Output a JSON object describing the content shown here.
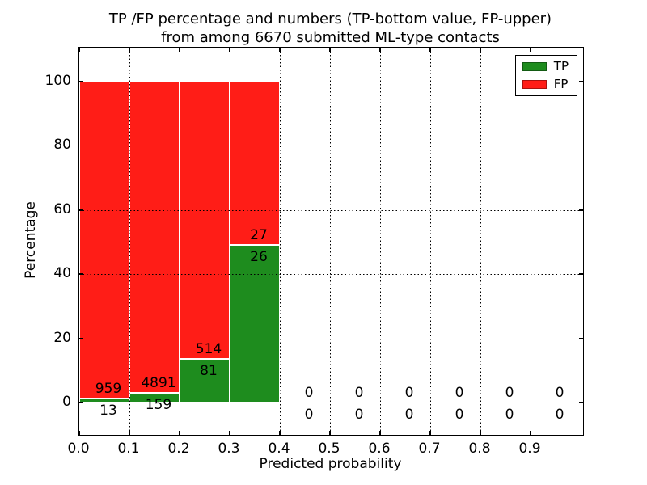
{
  "chart_data": {
    "type": "bar",
    "stacked": true,
    "title_line1": "TP /FP percentage and numbers (TP-bottom value, FP-upper)",
    "title_line2": "from among 6670 submitted ML-type contacts",
    "xlabel": "Predicted probability",
    "ylabel": "Percentage",
    "x_tick_labels": [
      "0.0",
      "0.1",
      "0.2",
      "0.3",
      "0.4",
      "0.5",
      "0.6",
      "0.7",
      "0.8",
      "0.9"
    ],
    "x_tick_values": [
      0.0,
      0.1,
      0.2,
      0.3,
      0.4,
      0.5,
      0.6,
      0.7,
      0.8,
      0.9
    ],
    "y_tick_labels": [
      "0",
      "20",
      "40",
      "60",
      "80",
      "100"
    ],
    "y_tick_values": [
      0,
      20,
      40,
      60,
      80,
      100
    ],
    "xlim": [
      0.0,
      1.005
    ],
    "ylim": [
      -10.1,
      110.6
    ],
    "bin_width": 0.1,
    "grid": "dotted",
    "units": "percent stacked to 100",
    "bins": [
      {
        "x0": 0.0,
        "x1": 0.1,
        "tp": 13,
        "fp": 959
      },
      {
        "x0": 0.1,
        "x1": 0.2,
        "tp": 159,
        "fp": 4891
      },
      {
        "x0": 0.2,
        "x1": 0.3,
        "tp": 81,
        "fp": 514
      },
      {
        "x0": 0.3,
        "x1": 0.4,
        "tp": 26,
        "fp": 27
      },
      {
        "x0": 0.4,
        "x1": 0.5,
        "tp": 0,
        "fp": 0
      },
      {
        "x0": 0.5,
        "x1": 0.6,
        "tp": 0,
        "fp": 0
      },
      {
        "x0": 0.6,
        "x1": 0.7,
        "tp": 0,
        "fp": 0
      },
      {
        "x0": 0.7,
        "x1": 0.8,
        "tp": 0,
        "fp": 0
      },
      {
        "x0": 0.8,
        "x1": 0.9,
        "tp": 0,
        "fp": 0
      },
      {
        "x0": 0.9,
        "x1": 1.0,
        "tp": 0,
        "fp": 0
      }
    ],
    "colors": {
      "tp": "#1e8c1e",
      "fp": "#ff1d17",
      "grid": "#000000",
      "text": "#000000"
    },
    "legend": {
      "position": "upper-right",
      "entries": [
        {
          "label": "TP",
          "color": "#1e8c1e"
        },
        {
          "label": "FP",
          "color": "#ff1d17"
        }
      ]
    }
  }
}
